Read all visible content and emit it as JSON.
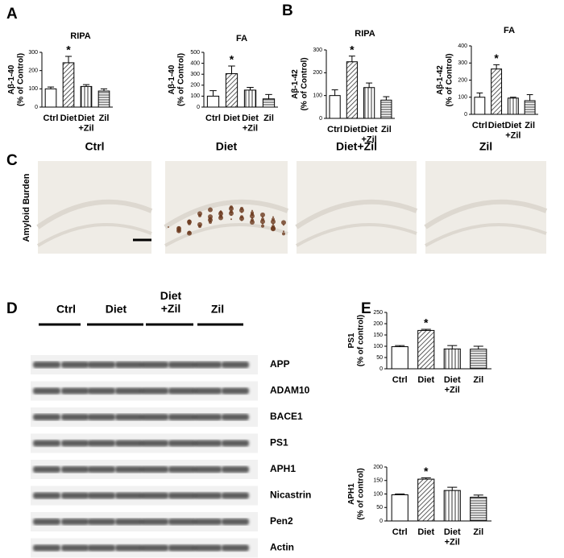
{
  "panel_labels": [
    "A",
    "B",
    "C",
    "D",
    "E"
  ],
  "chart_data": [
    {
      "type": "bar",
      "title": "RIPA",
      "y_label": "Aβ-1-40\n(% of Control)",
      "categories": [
        "Ctrl",
        "Diet",
        "Diet\n+Zil",
        "Zil"
      ],
      "values": [
        100,
        243,
        113,
        88
      ],
      "errors": [
        10,
        35,
        10,
        12
      ],
      "bar_patterns": [
        "none",
        "diagonal",
        "vertical",
        "horizontal"
      ],
      "ylim": [
        0,
        300
      ],
      "yticks": [
        0,
        100,
        200,
        300
      ],
      "annotations": [
        {
          "text": "*",
          "category": "Diet"
        }
      ]
    },
    {
      "type": "bar",
      "title": "FA",
      "y_label": "Aβ-1-40\n(% of Control)",
      "categories": [
        "Ctrl",
        "Diet",
        "Diet\n+Zil",
        "Zil"
      ],
      "values": [
        100,
        305,
        155,
        75
      ],
      "errors": [
        50,
        70,
        25,
        40
      ],
      "bar_patterns": [
        "none",
        "diagonal",
        "vertical",
        "horizontal"
      ],
      "ylim": [
        0,
        500
      ],
      "yticks": [
        0,
        100,
        200,
        300,
        400,
        500
      ],
      "annotations": [
        {
          "text": "*",
          "category": "Diet"
        }
      ]
    },
    {
      "type": "bar",
      "title": "RIPA",
      "y_label": "Aβ-1-42\n(% of Control)",
      "categories": [
        "Ctrl",
        "Diet",
        "Diet\n+Zil",
        "Zil"
      ],
      "values": [
        100,
        248,
        135,
        80
      ],
      "errors": [
        25,
        25,
        20,
        15
      ],
      "bar_patterns": [
        "none",
        "diagonal",
        "vertical",
        "horizontal"
      ],
      "ylim": [
        0,
        300
      ],
      "yticks": [
        0,
        100,
        200,
        300
      ],
      "annotations": [
        {
          "text": "*",
          "category": "Diet"
        }
      ]
    },
    {
      "type": "bar",
      "title": "FA",
      "y_label": "Aβ-1-42\n(% of Control)",
      "categories": [
        "Ctrl",
        "Diet",
        "Diet\n+Zil",
        "Zil"
      ],
      "values": [
        100,
        265,
        95,
        80
      ],
      "errors": [
        25,
        25,
        5,
        35
      ],
      "bar_patterns": [
        "none",
        "diagonal",
        "vertical",
        "horizontal"
      ],
      "ylim": [
        0,
        400
      ],
      "yticks": [
        0,
        100,
        200,
        300,
        400
      ],
      "annotations": [
        {
          "text": "*",
          "category": "Diet"
        }
      ]
    },
    {
      "type": "bar",
      "y_label": "PS1\n(% of control)",
      "categories": [
        "Ctrl",
        "Diet",
        "Diet\n+Zil",
        "Zil"
      ],
      "values": [
        98,
        170,
        88,
        87
      ],
      "errors": [
        5,
        5,
        15,
        13
      ],
      "bar_patterns": [
        "none",
        "diagonal",
        "vertical",
        "horizontal"
      ],
      "ylim": [
        0,
        250
      ],
      "yticks": [
        0,
        50,
        100,
        150,
        200,
        250
      ],
      "annotations": [
        {
          "text": "*",
          "category": "Diet"
        }
      ]
    },
    {
      "type": "bar",
      "y_label": "APH1\n(% of control)",
      "categories": [
        "Ctrl",
        "Diet",
        "Diet\n+Zil",
        "Zil"
      ],
      "values": [
        97,
        155,
        113,
        88
      ],
      "errors": [
        3,
        5,
        12,
        8
      ],
      "bar_patterns": [
        "none",
        "diagonal",
        "vertical",
        "horizontal"
      ],
      "ylim": [
        0,
        200
      ],
      "yticks": [
        0,
        50,
        100,
        150,
        200
      ],
      "annotations": [
        {
          "text": "*",
          "category": "Diet"
        }
      ]
    }
  ],
  "micrographs": {
    "labels": [
      "Ctrl",
      "Diet",
      "Diet+Zil",
      "Zil"
    ],
    "row_label": "Amyloid Burden"
  },
  "blot": {
    "groups": [
      "Ctrl",
      "Diet",
      "Diet\n+Zil",
      "Zil"
    ],
    "proteins": [
      "APP",
      "ADAM10",
      "BACE1",
      "PS1",
      "APH1",
      "Nicastrin",
      "Pen2",
      "Actin"
    ]
  }
}
